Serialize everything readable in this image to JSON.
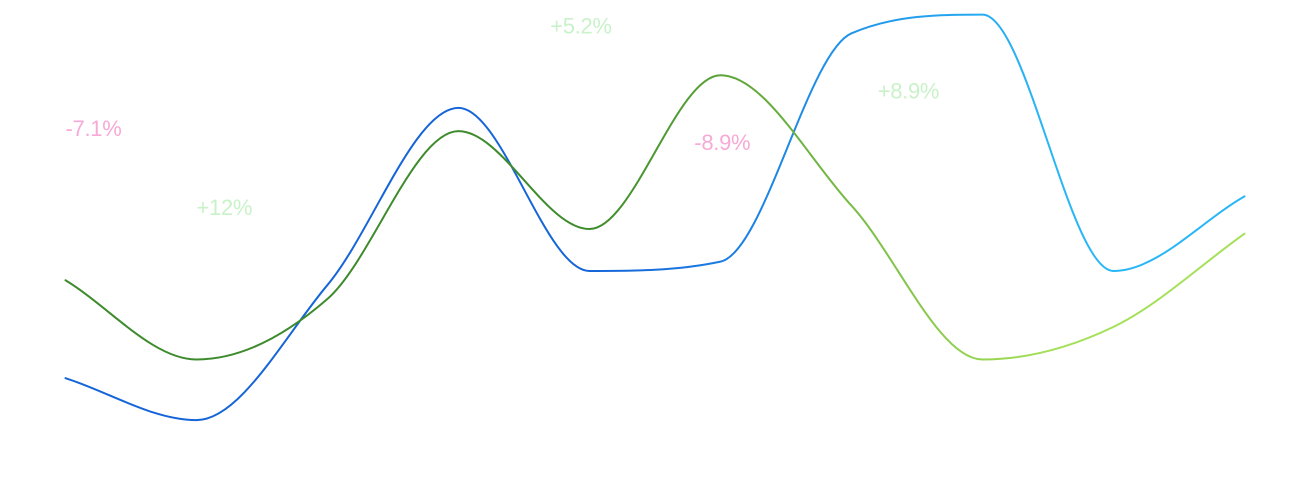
{
  "chart_data": {
    "type": "line",
    "title": "",
    "xlabel": "",
    "ylabel": "",
    "grid": false,
    "legend": "none",
    "x": [
      0,
      1,
      2,
      3,
      4,
      5,
      6,
      7,
      8,
      9
    ],
    "xlim": [
      -0.5,
      9.5
    ],
    "ylim": [
      0,
      100
    ],
    "series": [
      {
        "values": [
          21,
          12,
          41,
          79,
          44,
          46,
          95,
          99,
          44,
          60
        ],
        "color_start": "#1565d8",
        "color_end": "#29b6f6"
      },
      {
        "values": [
          42,
          25,
          38,
          74,
          53,
          86,
          58,
          25,
          32,
          52
        ],
        "color_start": "#3d8b2c",
        "color_end": "#a4e058"
      }
    ],
    "annotations": [
      {
        "text": "-7.1%",
        "x": 0,
        "y": 73,
        "color": "#f7aad6"
      },
      {
        "text": "+12%",
        "x": 1,
        "y": 56,
        "color": "#c9f2c9"
      },
      {
        "text": "+5.2%",
        "x": 3.7,
        "y": 95,
        "color": "#c9f2c9"
      },
      {
        "text": "-8.9%",
        "x": 4.8,
        "y": 70,
        "color": "#f7aad6"
      },
      {
        "text": "+8.9%",
        "x": 6.2,
        "y": 81,
        "color": "#c9f2c9"
      },
      {
        "text": "+",
        "x": 9.5,
        "y": 94,
        "color": "#c9f2c9"
      }
    ]
  }
}
